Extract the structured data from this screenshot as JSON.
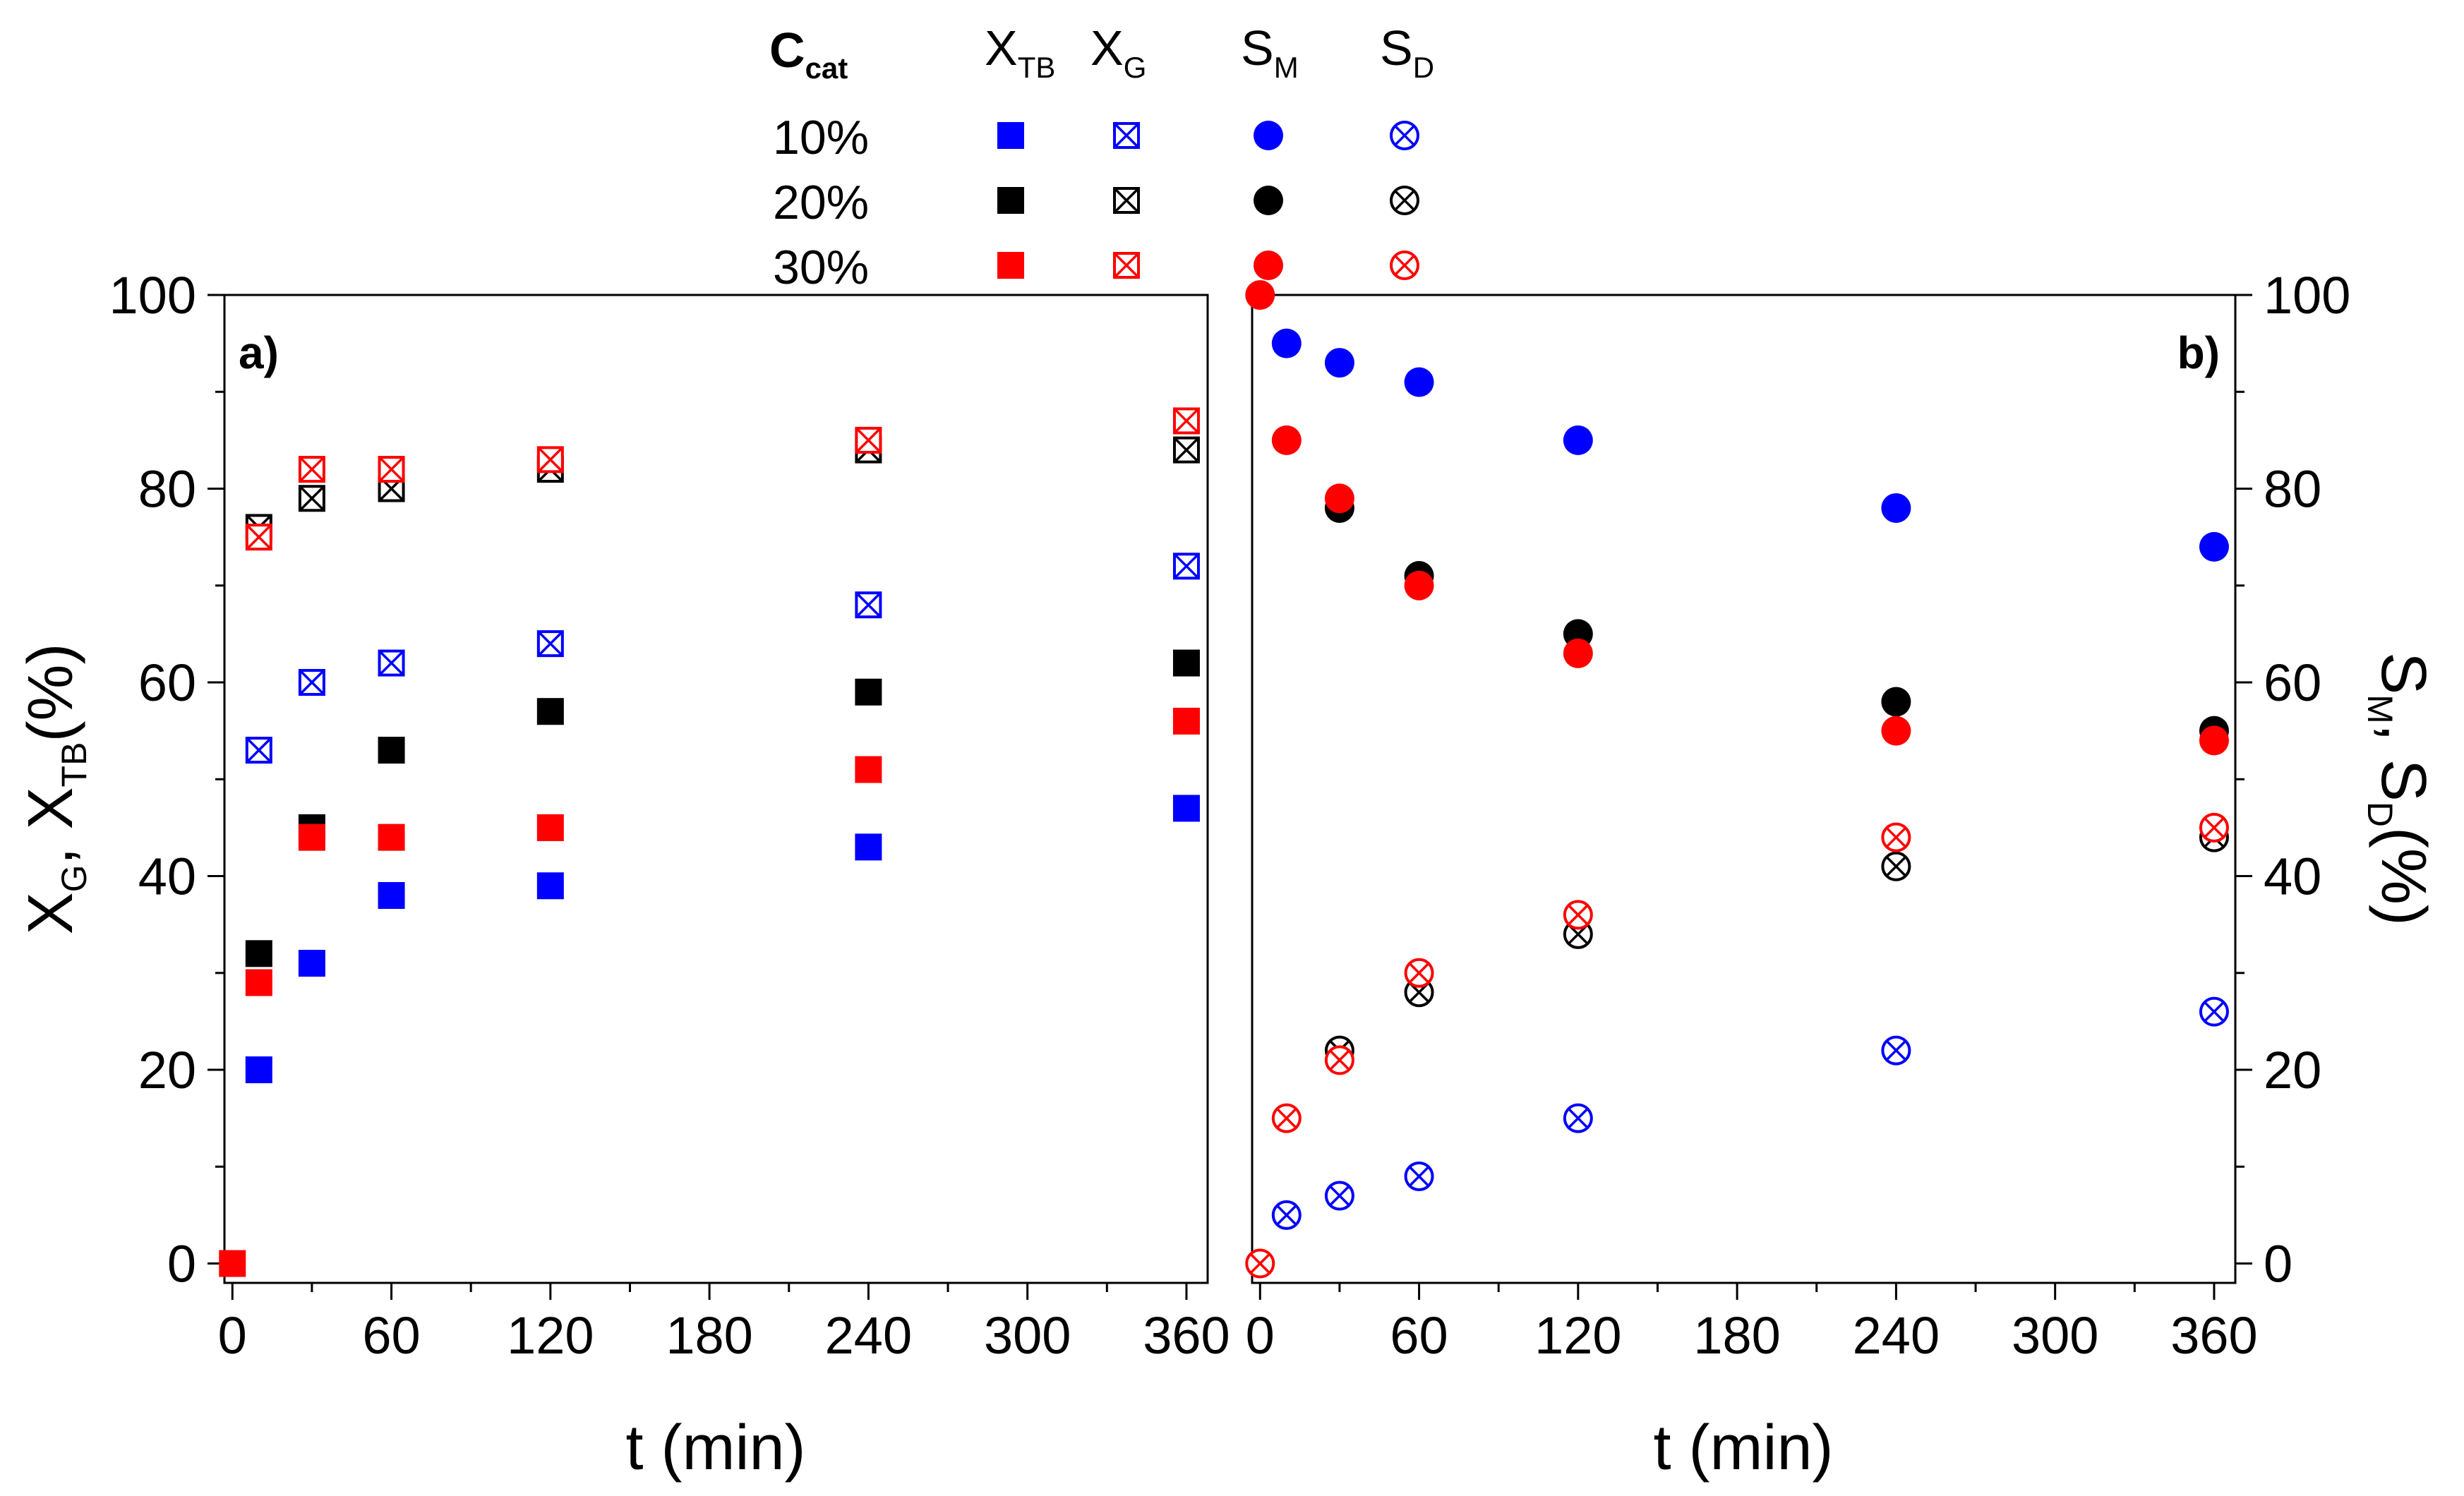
{
  "chart_data": [
    {
      "panel": "a",
      "type": "scatter",
      "panel_label": "a)",
      "xlabel": "t (min)",
      "ylabel": {
        "main1": "X",
        "sub1": "G",
        "sep": ", ",
        "main2": "X",
        "sub2": "TB",
        "unit": "(%)"
      },
      "xlim": [
        -3,
        368
      ],
      "ylim": [
        -2,
        100
      ],
      "xticks": [
        0,
        60,
        120,
        180,
        240,
        300,
        360
      ],
      "yticks": [
        0,
        20,
        40,
        60,
        80,
        100
      ],
      "series": [
        {
          "name": "X_TB 10%",
          "marker": "square-filled",
          "color": "#0000ff",
          "x": [
            10,
            30,
            60,
            120,
            240,
            360
          ],
          "y": [
            20,
            31,
            38,
            39,
            43,
            47
          ]
        },
        {
          "name": "X_TB 20%",
          "marker": "square-filled",
          "color": "#000000",
          "x": [
            10,
            30,
            60,
            120,
            240,
            360
          ],
          "y": [
            32,
            45,
            53,
            57,
            59,
            62
          ]
        },
        {
          "name": "X_TB 30%",
          "marker": "square-filled",
          "color": "#ff0000",
          "x": [
            0,
            10,
            30,
            60,
            120,
            240,
            360
          ],
          "y": [
            0,
            29,
            44,
            44,
            45,
            51,
            56
          ]
        },
        {
          "name": "X_G 10%",
          "marker": "square-x",
          "color": "#0000ff",
          "x": [
            10,
            30,
            60,
            120,
            240,
            360
          ],
          "y": [
            53,
            60,
            62,
            64,
            68,
            72
          ]
        },
        {
          "name": "X_G 20%",
          "marker": "square-x",
          "color": "#000000",
          "x": [
            10,
            30,
            60,
            120,
            240,
            360
          ],
          "y": [
            76,
            79,
            80,
            82,
            84,
            84
          ]
        },
        {
          "name": "X_G 30%",
          "marker": "square-x",
          "color": "#ff0000",
          "x": [
            10,
            30,
            60,
            120,
            240,
            360
          ],
          "y": [
            75,
            82,
            82,
            83,
            85,
            87
          ]
        }
      ]
    },
    {
      "panel": "b",
      "type": "scatter",
      "panel_label": "b)",
      "xlabel": "t (min)",
      "ylabel": {
        "main1": "S",
        "sub1": "M",
        "sep": ", ",
        "main2": "S",
        "sub2": "D",
        "unit": "(%)"
      },
      "xlim": [
        -3,
        368
      ],
      "ylim": [
        -2,
        100
      ],
      "xticks": [
        0,
        60,
        120,
        180,
        240,
        300,
        360
      ],
      "yticks": [
        0,
        20,
        40,
        60,
        80,
        100
      ],
      "series": [
        {
          "name": "S_M 10%",
          "marker": "circle-filled",
          "color": "#0000ff",
          "x": [
            10,
            30,
            60,
            120,
            240,
            360
          ],
          "y": [
            95,
            93,
            91,
            85,
            78,
            74
          ]
        },
        {
          "name": "S_M 20%",
          "marker": "circle-filled",
          "color": "#000000",
          "x": [
            30,
            60,
            120,
            240,
            360
          ],
          "y": [
            78,
            71,
            65,
            58,
            55
          ]
        },
        {
          "name": "S_M 30%",
          "marker": "circle-filled",
          "color": "#ff0000",
          "x": [
            0,
            10,
            30,
            60,
            120,
            240,
            360
          ],
          "y": [
            100,
            85,
            79,
            70,
            63,
            55,
            54
          ]
        },
        {
          "name": "S_D 10%",
          "marker": "circle-x",
          "color": "#0000ff",
          "x": [
            10,
            30,
            60,
            120,
            240,
            360
          ],
          "y": [
            5,
            7,
            9,
            15,
            22,
            26
          ]
        },
        {
          "name": "S_D 20%",
          "marker": "circle-x",
          "color": "#000000",
          "x": [
            30,
            60,
            120,
            240,
            360
          ],
          "y": [
            22,
            28,
            34,
            41,
            44
          ]
        },
        {
          "name": "S_D 30%",
          "marker": "circle-x",
          "color": "#ff0000",
          "x": [
            0,
            10,
            30,
            60,
            120,
            240,
            360
          ],
          "y": [
            0,
            15,
            21,
            30,
            36,
            44,
            45
          ]
        }
      ]
    }
  ],
  "legend": {
    "ccat_main": "C",
    "ccat_sub": "cat",
    "columns": [
      {
        "main": "X",
        "sub": "TB",
        "marker": "square-filled"
      },
      {
        "main": "X",
        "sub": "G",
        "marker": "square-x"
      },
      {
        "main": "S",
        "sub": "M",
        "marker": "circle-filled"
      },
      {
        "main": "S",
        "sub": "D",
        "marker": "circle-x"
      }
    ],
    "rows": [
      {
        "label": "10%",
        "color": "#0000ff"
      },
      {
        "label": "20%",
        "color": "#000000"
      },
      {
        "label": "30%",
        "color": "#ff0000"
      }
    ]
  }
}
